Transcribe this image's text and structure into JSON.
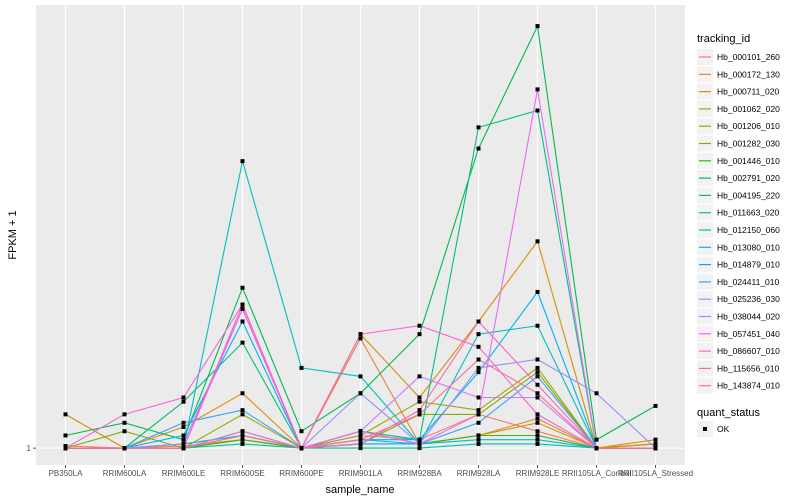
{
  "chart_data": {
    "type": "line",
    "title": "",
    "xlabel": "sample_name",
    "ylabel": "FPKM + 1",
    "y_ticks": [
      "1"
    ],
    "y_tick_values": [
      1
    ],
    "ylim": [
      -3,
      106
    ],
    "grid": true,
    "legend_placement": "right",
    "categories": [
      "PB350LA",
      "RRIM600LA",
      "RRIM600LE",
      "RRIM600SE",
      "RRIM600PE",
      "RRIM901LA",
      "RRIM928BA",
      "RRIM928LA",
      "RRIM928LE",
      "RRII105LA_Control",
      "RRII105LA_Stressed"
    ],
    "legend": {
      "color_title": "tracking_id",
      "shape_title": "quant_status",
      "shape_entries": [
        "OK"
      ]
    },
    "series": [
      {
        "name": "Hb_000101_260",
        "color": "#F8766D",
        "values": [
          1.5,
          1,
          2,
          4,
          1,
          4,
          3,
          9,
          5,
          1,
          2
        ]
      },
      {
        "name": "Hb_000172_130",
        "color": "#EA8331",
        "values": [
          1,
          1,
          1.5,
          3,
          1,
          27,
          2,
          4,
          8,
          1,
          2
        ]
      },
      {
        "name": "Hb_000711_020",
        "color": "#D89000",
        "values": [
          9,
          1,
          6,
          14,
          1,
          28,
          13,
          31,
          50,
          1,
          3
        ]
      },
      {
        "name": "Hb_001062_020",
        "color": "#C09B00",
        "values": [
          1,
          1,
          1,
          5,
          1,
          5,
          2,
          4,
          7,
          1,
          2
        ]
      },
      {
        "name": "Hb_001206_010",
        "color": "#A3A500",
        "values": [
          1,
          1,
          1,
          9,
          1,
          4,
          12,
          10,
          20,
          1,
          1
        ]
      },
      {
        "name": "Hb_001282_030",
        "color": "#7CAE00",
        "values": [
          1,
          5,
          1,
          4,
          1,
          2,
          9,
          9,
          19,
          1,
          1
        ]
      },
      {
        "name": "Hb_001446_010",
        "color": "#39B600",
        "values": [
          1,
          1,
          1,
          3,
          1,
          2,
          2,
          4,
          4,
          1,
          1
        ]
      },
      {
        "name": "Hb_002791_020",
        "color": "#00BB4E",
        "values": [
          4,
          7,
          3,
          39,
          5,
          14,
          28,
          72,
          101,
          3,
          11
        ]
      },
      {
        "name": "Hb_004195_220",
        "color": "#00BF7D",
        "values": [
          1,
          1,
          12,
          26,
          1,
          5,
          3,
          77,
          81,
          1,
          1
        ]
      },
      {
        "name": "Hb_011663_020",
        "color": "#00C1A3",
        "values": [
          1,
          1,
          1,
          2,
          1,
          1,
          1,
          2,
          2,
          1,
          1
        ]
      },
      {
        "name": "Hb_012150_060",
        "color": "#00BFC4",
        "values": [
          1,
          1,
          1,
          69,
          20,
          18,
          2,
          28,
          30,
          1,
          1
        ]
      },
      {
        "name": "Hb_013080_010",
        "color": "#00BAE0",
        "values": [
          1,
          1,
          2,
          4,
          1,
          2,
          2,
          3,
          3,
          1,
          1
        ]
      },
      {
        "name": "Hb_014879_010",
        "color": "#00B0F6",
        "values": [
          1,
          1,
          4,
          31,
          1,
          3,
          3,
          19,
          38,
          1,
          1
        ]
      },
      {
        "name": "Hb_024411_010",
        "color": "#35A2FF",
        "values": [
          1,
          1,
          7,
          10,
          1,
          3,
          2,
          7,
          18,
          1,
          1
        ]
      },
      {
        "name": "Hb_025236_030",
        "color": "#9590FF",
        "values": [
          1,
          1,
          2,
          34,
          1,
          14,
          2,
          20,
          22,
          14,
          1
        ]
      },
      {
        "name": "Hb_038044_020",
        "color": "#C77CFF",
        "values": [
          1,
          1,
          1,
          5,
          1,
          5,
          18,
          13,
          13,
          1,
          1
        ]
      },
      {
        "name": "Hb_057451_040",
        "color": "#E76BF3",
        "values": [
          1,
          1,
          1,
          34,
          1,
          5,
          2,
          9,
          86,
          1,
          1
        ]
      },
      {
        "name": "Hb_086607_010",
        "color": "#FA62DB",
        "values": [
          1,
          9,
          13,
          35,
          1,
          28,
          30,
          25,
          9,
          1,
          1
        ]
      },
      {
        "name": "Hb_115656_010",
        "color": "#FF62BC",
        "values": [
          1,
          1,
          1,
          35,
          1,
          2,
          10,
          31,
          16,
          1,
          1
        ]
      },
      {
        "name": "Hb_143874_010",
        "color": "#FF6C91",
        "values": [
          1,
          1,
          1,
          4,
          1,
          3,
          9,
          22,
          14,
          1,
          1
        ]
      }
    ]
  }
}
